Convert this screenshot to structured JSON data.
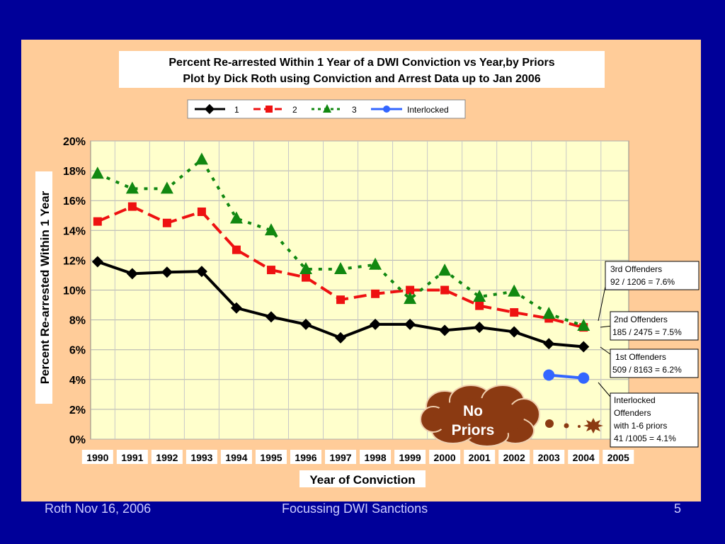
{
  "colors": {
    "background": "#000099",
    "panel": "#ffcc99",
    "plot_area": "#ffffcc",
    "series_1": "#000000",
    "series_2": "#ee1111",
    "series_3": "#118811",
    "series_interlocked": "#3366ff",
    "cloud": "#8b3a12"
  },
  "footer": {
    "left": "Roth Nov 16, 2006",
    "center": "Focussing DWI Sanctions",
    "right": "5"
  },
  "chart_data": {
    "type": "line",
    "title": "Percent Re-arrested Within 1 Year of a DWI Conviction vs Year,by Priors",
    "subtitle": "Plot by Dick Roth using Conviction and Arrest Data up to Jan 2006",
    "xlabel": "Year of Conviction",
    "ylabel": "Percent Re-arrested Within 1 Year",
    "categories": [
      "1990",
      "1991",
      "1992",
      "1993",
      "1994",
      "1995",
      "1996",
      "1997",
      "1998",
      "1999",
      "2000",
      "2001",
      "2002",
      "2003",
      "2004",
      "2005"
    ],
    "yticks": [
      "0%",
      "2%",
      "4%",
      "6%",
      "8%",
      "10%",
      "12%",
      "14%",
      "16%",
      "18%",
      "20%"
    ],
    "ylim": [
      0,
      20
    ],
    "grid": true,
    "legend_position": "top",
    "series": [
      {
        "name": "1",
        "color": "#000000",
        "marker": "diamond",
        "dash": "solid",
        "values": [
          11.9,
          11.1,
          11.2,
          11.25,
          8.8,
          8.2,
          7.7,
          6.8,
          7.7,
          7.7,
          7.3,
          7.5,
          7.2,
          6.4,
          6.2,
          null
        ]
      },
      {
        "name": "2",
        "color": "#ee1111",
        "marker": "square",
        "dash": "dashed",
        "values": [
          14.6,
          15.6,
          14.5,
          15.25,
          12.7,
          11.35,
          10.85,
          9.35,
          9.75,
          10.0,
          10.0,
          8.95,
          8.5,
          8.1,
          7.5,
          null
        ]
      },
      {
        "name": "3",
        "color": "#118811",
        "marker": "triangle",
        "dash": "dotted",
        "values": [
          17.8,
          16.8,
          16.8,
          18.75,
          14.8,
          14.0,
          11.4,
          11.4,
          11.7,
          9.4,
          11.3,
          9.55,
          9.9,
          8.4,
          7.6,
          null
        ]
      },
      {
        "name": "Interlocked",
        "color": "#3366ff",
        "marker": "circle",
        "dash": "solid",
        "values": [
          null,
          null,
          null,
          null,
          null,
          null,
          null,
          null,
          null,
          null,
          null,
          null,
          null,
          4.3,
          4.1,
          null
        ]
      }
    ],
    "annotations": [
      {
        "line1": "3rd Offenders",
        "line2": "92 / 1206 = 7.6%"
      },
      {
        "line1": "2nd Offenders",
        "line2": "185 / 2475 = 7.5%"
      },
      {
        "line1": "1st Offenders",
        "line2": "509 / 8163 = 6.2%"
      },
      {
        "line1": "Interlocked",
        "line2": "Offenders",
        "line3": "with 1-6 priors",
        "line4": "41 /1005 = 4.1%"
      }
    ],
    "cloud_label": {
      "line1": "No",
      "line2": "Priors"
    }
  }
}
